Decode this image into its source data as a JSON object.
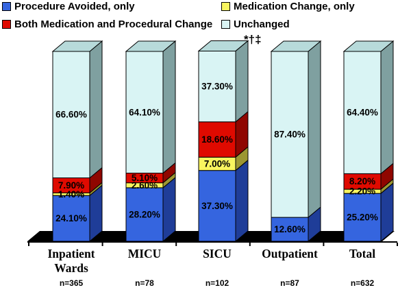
{
  "legend": {
    "items": [
      {
        "label": "Procedure Avoided, only",
        "color": "#3565DF"
      },
      {
        "label": "Medication Change, only",
        "color": "#F9F55F"
      },
      {
        "label": "Both Medication and Procedural Change",
        "color": "#DF0A00"
      },
      {
        "label": "Unchanged",
        "color": "#D9F4F4"
      }
    ]
  },
  "chart_data": {
    "type": "bar",
    "subtype": "3d-stacked-percent-column",
    "title": "",
    "xlabel": "",
    "ylabel": "",
    "ylim": [
      0,
      100
    ],
    "legend_position": "top",
    "grid": false,
    "categories": [
      "Inpatient Wards",
      "MICU",
      "SICU",
      "Outpatient",
      "Total"
    ],
    "category_n": [
      "n=365",
      "n=78",
      "n=102",
      "n=87",
      "n=632"
    ],
    "series": [
      {
        "name": "Procedure Avoided, only",
        "color": "#3565DF",
        "side_color": "#1F3D98",
        "values": [
          24.1,
          28.2,
          37.3,
          12.6,
          25.2
        ]
      },
      {
        "name": "Medication Change, only",
        "color": "#F9F55F",
        "side_color": "#9C9632",
        "values": [
          1.4,
          2.6,
          7.0,
          0,
          2.2
        ]
      },
      {
        "name": "Both Medication and Procedural Change",
        "color": "#DF0A00",
        "side_color": "#8F0600",
        "values": [
          7.9,
          5.1,
          18.6,
          0,
          8.2
        ]
      },
      {
        "name": "Unchanged",
        "color": "#D9F4F4",
        "side_color": "#7FA0A0",
        "top_color": "#B7DADA",
        "values": [
          66.6,
          64.1,
          37.3,
          87.4,
          64.4
        ]
      }
    ],
    "value_labels": [
      [
        "24.10%",
        "1.40%",
        "7.90%",
        "66.60%"
      ],
      [
        "28.20%",
        "2.60%",
        "5.10%",
        "64.10%"
      ],
      [
        "37.30%",
        "7.00%",
        "18.60%",
        "37.30%"
      ],
      [
        "12.60%",
        "87.40%"
      ],
      [
        "25.20%",
        "2.20%",
        "8.20%",
        "64.40%"
      ]
    ],
    "annotation": {
      "text": "*†‡",
      "above_category": "SICU"
    }
  }
}
